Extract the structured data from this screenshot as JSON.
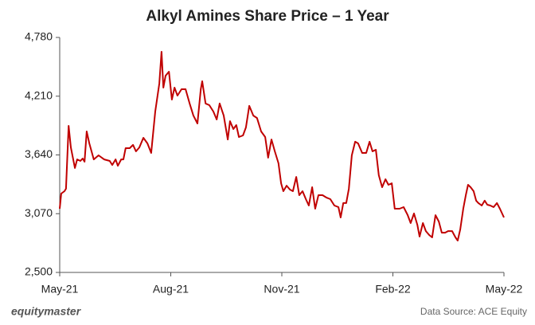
{
  "chart_data": {
    "type": "line",
    "title": "Alkyl Amines Share Price – 1 Year",
    "source": "Data Source: ACE Equity",
    "brand": "equitymaster",
    "color": "#c00000",
    "xlim": [
      0,
      12
    ],
    "xticks": [
      {
        "value": 0,
        "label": "May-21"
      },
      {
        "value": 3,
        "label": "Aug-21"
      },
      {
        "value": 6,
        "label": "Nov-21"
      },
      {
        "value": 9,
        "label": "Feb-22"
      },
      {
        "value": 12,
        "label": "May-22"
      }
    ],
    "ylim": [
      2500,
      4780
    ],
    "yticks": [
      {
        "value": 2500,
        "label": "2,500"
      },
      {
        "value": 3070,
        "label": "3,070"
      },
      {
        "value": 3640,
        "label": "3,640"
      },
      {
        "value": 4210,
        "label": "4,210"
      },
      {
        "value": 4780,
        "label": "4,780"
      }
    ],
    "x": [
      0,
      0.04,
      0.13,
      0.17,
      0.24,
      0.3,
      0.41,
      0.47,
      0.56,
      0.62,
      0.67,
      0.73,
      0.8,
      0.92,
      1.05,
      1.2,
      1.35,
      1.42,
      1.51,
      1.57,
      1.66,
      1.72,
      1.78,
      1.89,
      1.98,
      2.06,
      2.15,
      2.26,
      2.37,
      2.47,
      2.58,
      2.69,
      2.75,
      2.8,
      2.86,
      2.95,
      3.03,
      3.1,
      3.18,
      3.29,
      3.4,
      3.51,
      3.61,
      3.72,
      3.81,
      3.85,
      3.94,
      4.04,
      4.15,
      4.24,
      4.32,
      4.43,
      4.54,
      4.6,
      4.69,
      4.77,
      4.84,
      4.95,
      5.03,
      5.12,
      5.23,
      5.33,
      5.44,
      5.55,
      5.63,
      5.72,
      5.81,
      5.91,
      5.98,
      6.04,
      6.13,
      6.22,
      6.3,
      6.39,
      6.47,
      6.56,
      6.65,
      6.73,
      6.82,
      6.9,
      6.99,
      7.1,
      7.2,
      7.31,
      7.42,
      7.53,
      7.59,
      7.66,
      7.74,
      7.81,
      7.89,
      7.98,
      8.06,
      8.17,
      8.28,
      8.37,
      8.45,
      8.54,
      8.62,
      8.71,
      8.8,
      8.88,
      8.97,
      9.05,
      9.18,
      9.29,
      9.4,
      9.48,
      9.57,
      9.66,
      9.72,
      9.81,
      9.89,
      9.98,
      10.06,
      10.15,
      10.24,
      10.32,
      10.41,
      10.49,
      10.6,
      10.69,
      10.75,
      10.82,
      10.9,
      10.97,
      11.03,
      11.1,
      11.18,
      11.25,
      11.31,
      11.4,
      11.48,
      11.55,
      11.63,
      11.72,
      11.81,
      11.89,
      12
    ],
    "values": [
      3118,
      3265,
      3288,
      3312,
      3922,
      3713,
      3513,
      3597,
      3582,
      3605,
      3574,
      3868,
      3752,
      3597,
      3636,
      3597,
      3582,
      3543,
      3597,
      3535,
      3597,
      3597,
      3706,
      3706,
      3737,
      3675,
      3713,
      3806,
      3752,
      3659,
      4061,
      4332,
      4641,
      4293,
      4409,
      4448,
      4177,
      4293,
      4216,
      4278,
      4278,
      4139,
      4022,
      3945,
      4278,
      4355,
      4139,
      4123,
      4061,
      3984,
      4139,
      4022,
      3790,
      3968,
      3891,
      3930,
      3814,
      3829,
      3907,
      4116,
      4022,
      3999,
      3868,
      3814,
      3613,
      3790,
      3675,
      3559,
      3365,
      3288,
      3342,
      3304,
      3288,
      3427,
      3250,
      3288,
      3211,
      3149,
      3327,
      3118,
      3250,
      3250,
      3227,
      3211,
      3149,
      3134,
      3033,
      3173,
      3173,
      3312,
      3636,
      3768,
      3752,
      3659,
      3659,
      3768,
      3675,
      3690,
      3443,
      3327,
      3404,
      3350,
      3365,
      3118,
      3118,
      3134,
      3056,
      2979,
      3072,
      2963,
      2848,
      2979,
      2901,
      2863,
      2840,
      3056,
      2994,
      2886,
      2886,
      2901,
      2901,
      2840,
      2809,
      2917,
      3118,
      3250,
      3350,
      3327,
      3288,
      3196,
      3173,
      3149,
      3196,
      3157,
      3149,
      3134,
      3173,
      3118,
      3033
    ]
  }
}
